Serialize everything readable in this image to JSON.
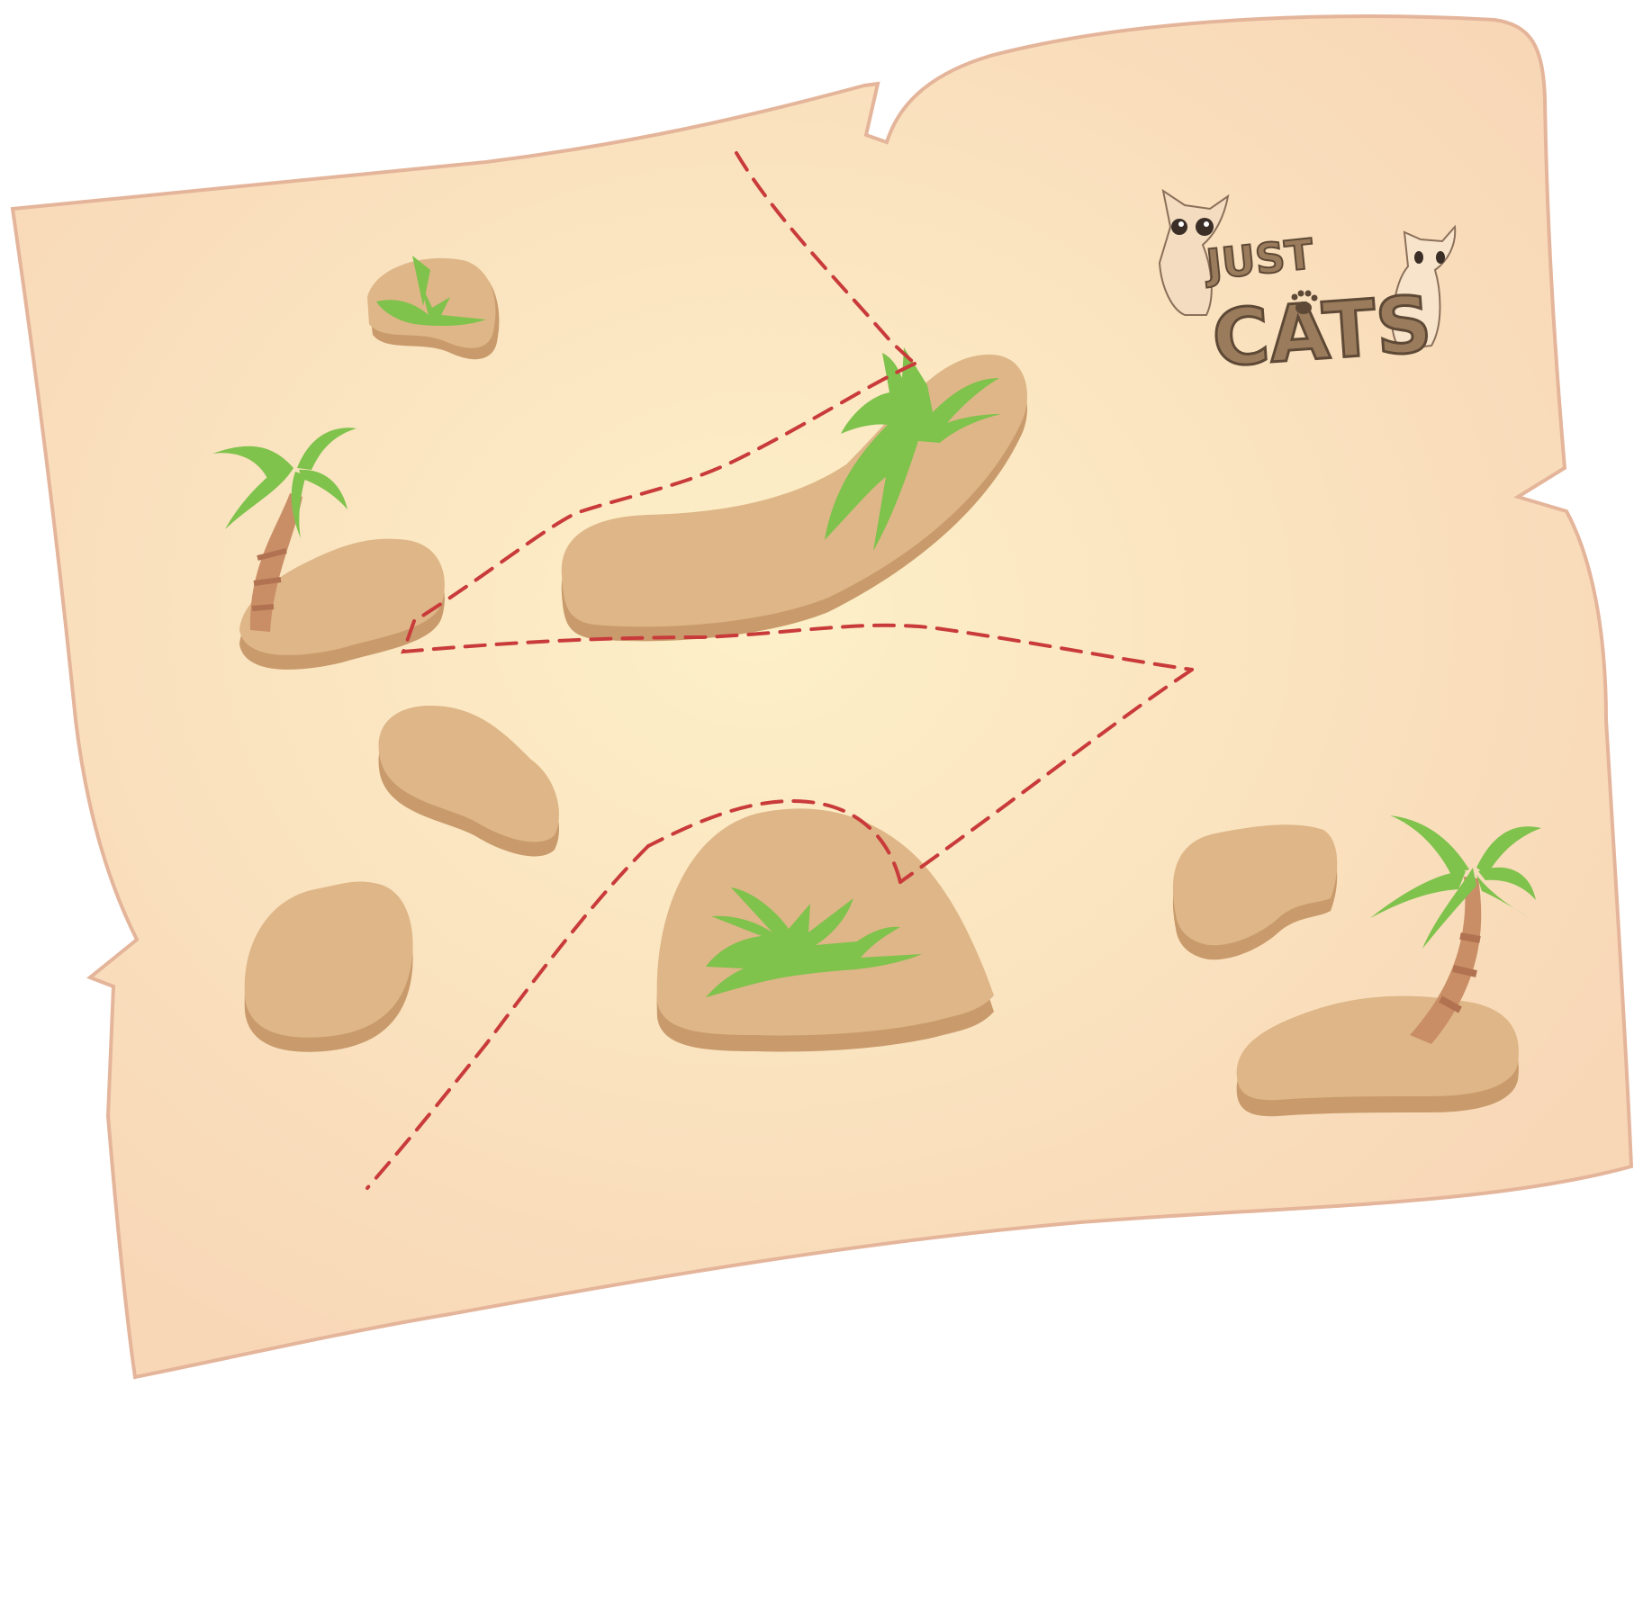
{
  "colors": {
    "paper_center": "#fdf0c8",
    "paper_edge": "#f8d7b7",
    "paper_outline": "#e4b59a",
    "island_top": "#deb687",
    "island_side": "#c99b6c",
    "leaf": "#7fc24c",
    "trunk": "#c98e66",
    "trunk_band": "#b07250",
    "route": "#c93b3b",
    "logo_brown": "#9a7c5c",
    "logo_dark": "#5e4936"
  },
  "logo": {
    "line1": "JUST",
    "line2": "CATS",
    "icon": "paw-icon"
  },
  "icons": [
    "palm-tree-icon",
    "grass-tuft-icon",
    "cat-icon"
  ]
}
